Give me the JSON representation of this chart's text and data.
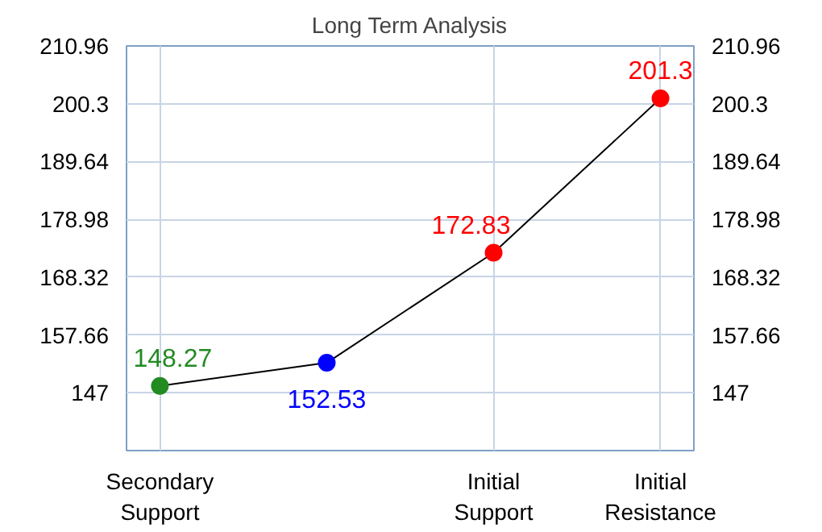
{
  "chart_data": {
    "type": "line",
    "title": "Long Term Analysis",
    "categories": [
      "Secondary\nSupport",
      null,
      "Initial\nSupport",
      "Initial\nResistance"
    ],
    "ylim": [
      136.34,
      210.96
    ],
    "yticks": [
      147,
      157.66,
      168.32,
      178.98,
      189.64,
      200.3,
      210.96
    ],
    "y2lim": [
      136.34,
      210.96
    ],
    "y2ticks": [
      147,
      157.66,
      168.32,
      178.98,
      189.64,
      200.3,
      210.96
    ],
    "series": [
      {
        "color": "#000000",
        "colors": [
          "#228b22",
          "#0000ff",
          "#ff0000",
          "#ff0000"
        ],
        "values": [
          148.27,
          152.53,
          172.83,
          201.3
        ]
      }
    ],
    "marker": "circle",
    "data_labels": true,
    "grid": true
  }
}
